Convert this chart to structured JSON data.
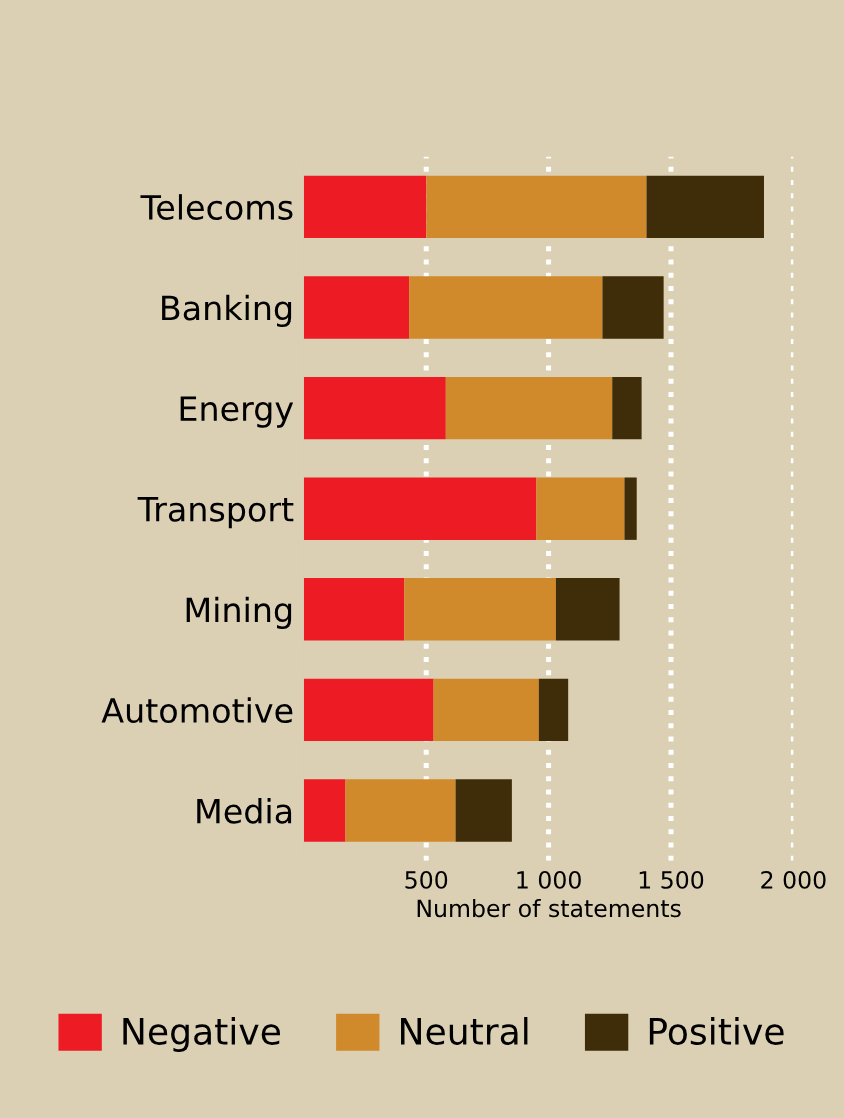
{
  "chart_data": {
    "type": "bar",
    "orientation": "horizontal",
    "stacked": true,
    "xlabel": "Number of statements",
    "categories": [
      "Telecoms",
      "Banking",
      "Energy",
      "Transport",
      "Mining",
      "Automotive",
      "Media"
    ],
    "series": [
      {
        "name": "Negative",
        "color": "#ed1c24",
        "values": [
          500,
          430,
          580,
          950,
          410,
          530,
          170
        ]
      },
      {
        "name": "Neutral",
        "color": "#d08a2c",
        "values": [
          900,
          790,
          680,
          360,
          620,
          430,
          450
        ]
      },
      {
        "name": "Positive",
        "color": "#3f2d0a",
        "values": [
          480,
          250,
          120,
          50,
          260,
          120,
          230
        ]
      }
    ],
    "xlim": [
      0,
      2000
    ],
    "xticks": [
      {
        "value": 500,
        "label": "500"
      },
      {
        "value": 1000,
        "label": "1 000"
      },
      {
        "value": 1500,
        "label": "1 500"
      },
      {
        "value": 2000,
        "label": "2 000"
      }
    ],
    "grid": "x",
    "legend": "bottom"
  }
}
